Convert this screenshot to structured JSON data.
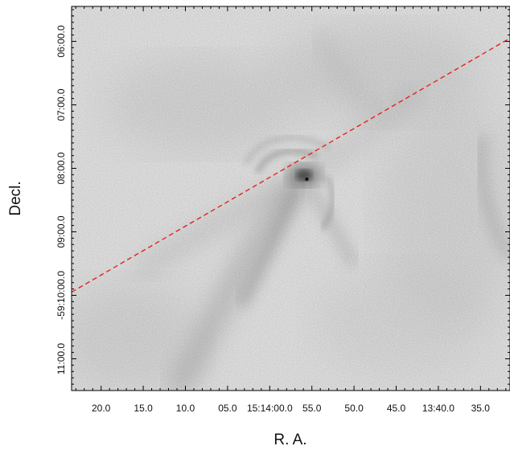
{
  "chart_data": {
    "type": "image",
    "xlabel": "R. A.",
    "ylabel": "Decl.",
    "x_tick_labels": [
      "20.0",
      "15.0",
      "10.0",
      "05.0",
      "15:14:00.0",
      "55.0",
      "50.0",
      "45.0",
      "13:40.0",
      "35.0"
    ],
    "x_ticks_seconds": [
      920,
      915,
      910,
      905,
      900,
      895,
      890,
      885,
      880,
      875
    ],
    "y_tick_labels": [
      "06:00.0",
      "07:00.0",
      "08:00.0",
      "09:00.0",
      "-59:10:00.0",
      "11:00.0"
    ],
    "y_ticks_arcmin": [
      6,
      7,
      8,
      9,
      10,
      11
    ],
    "xlim_seconds": [
      923.5,
      871.5
    ],
    "ylim_arcmin": [
      11.5,
      5.45
    ],
    "grid": false,
    "colormap": "grayscale-inverted",
    "line": {
      "style": "dashed",
      "color": "#e8211d",
      "points": [
        [
          923.5,
          9.95
        ],
        [
          871.5,
          5.95
        ]
      ]
    },
    "source_marker": {
      "ra_seconds": 895.6,
      "dec_arcmin": 8.17
    }
  }
}
